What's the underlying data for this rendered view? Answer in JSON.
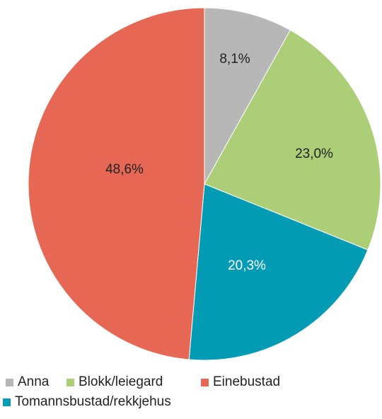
{
  "chart_data": {
    "type": "pie",
    "slices": [
      {
        "label": "Anna",
        "value": 8.1,
        "value_label": "8,1%",
        "color": "#b7b7b7",
        "label_color": "#222222"
      },
      {
        "label": "Blokk/leiegard",
        "value": 23.0,
        "value_label": "23,0%",
        "color": "#acce76",
        "label_color": "#222222"
      },
      {
        "label": "Tomannsbustad/rekkjehus",
        "value": 20.3,
        "value_label": "20,3%",
        "color": "#049bb4",
        "label_color": "#ffffff"
      },
      {
        "label": "Einebustad",
        "value": 48.6,
        "value_label": "48,6%",
        "color": "#e66753",
        "label_color": "#222222"
      }
    ],
    "start_angle_deg": 0,
    "direction": "clockwise",
    "legend_position": "bottom"
  },
  "legend": {
    "row1": [
      "Anna",
      "Blokk/leiegard",
      "Einebustad"
    ],
    "row2": [
      "Tomannsbustad/rekkjehus"
    ]
  }
}
